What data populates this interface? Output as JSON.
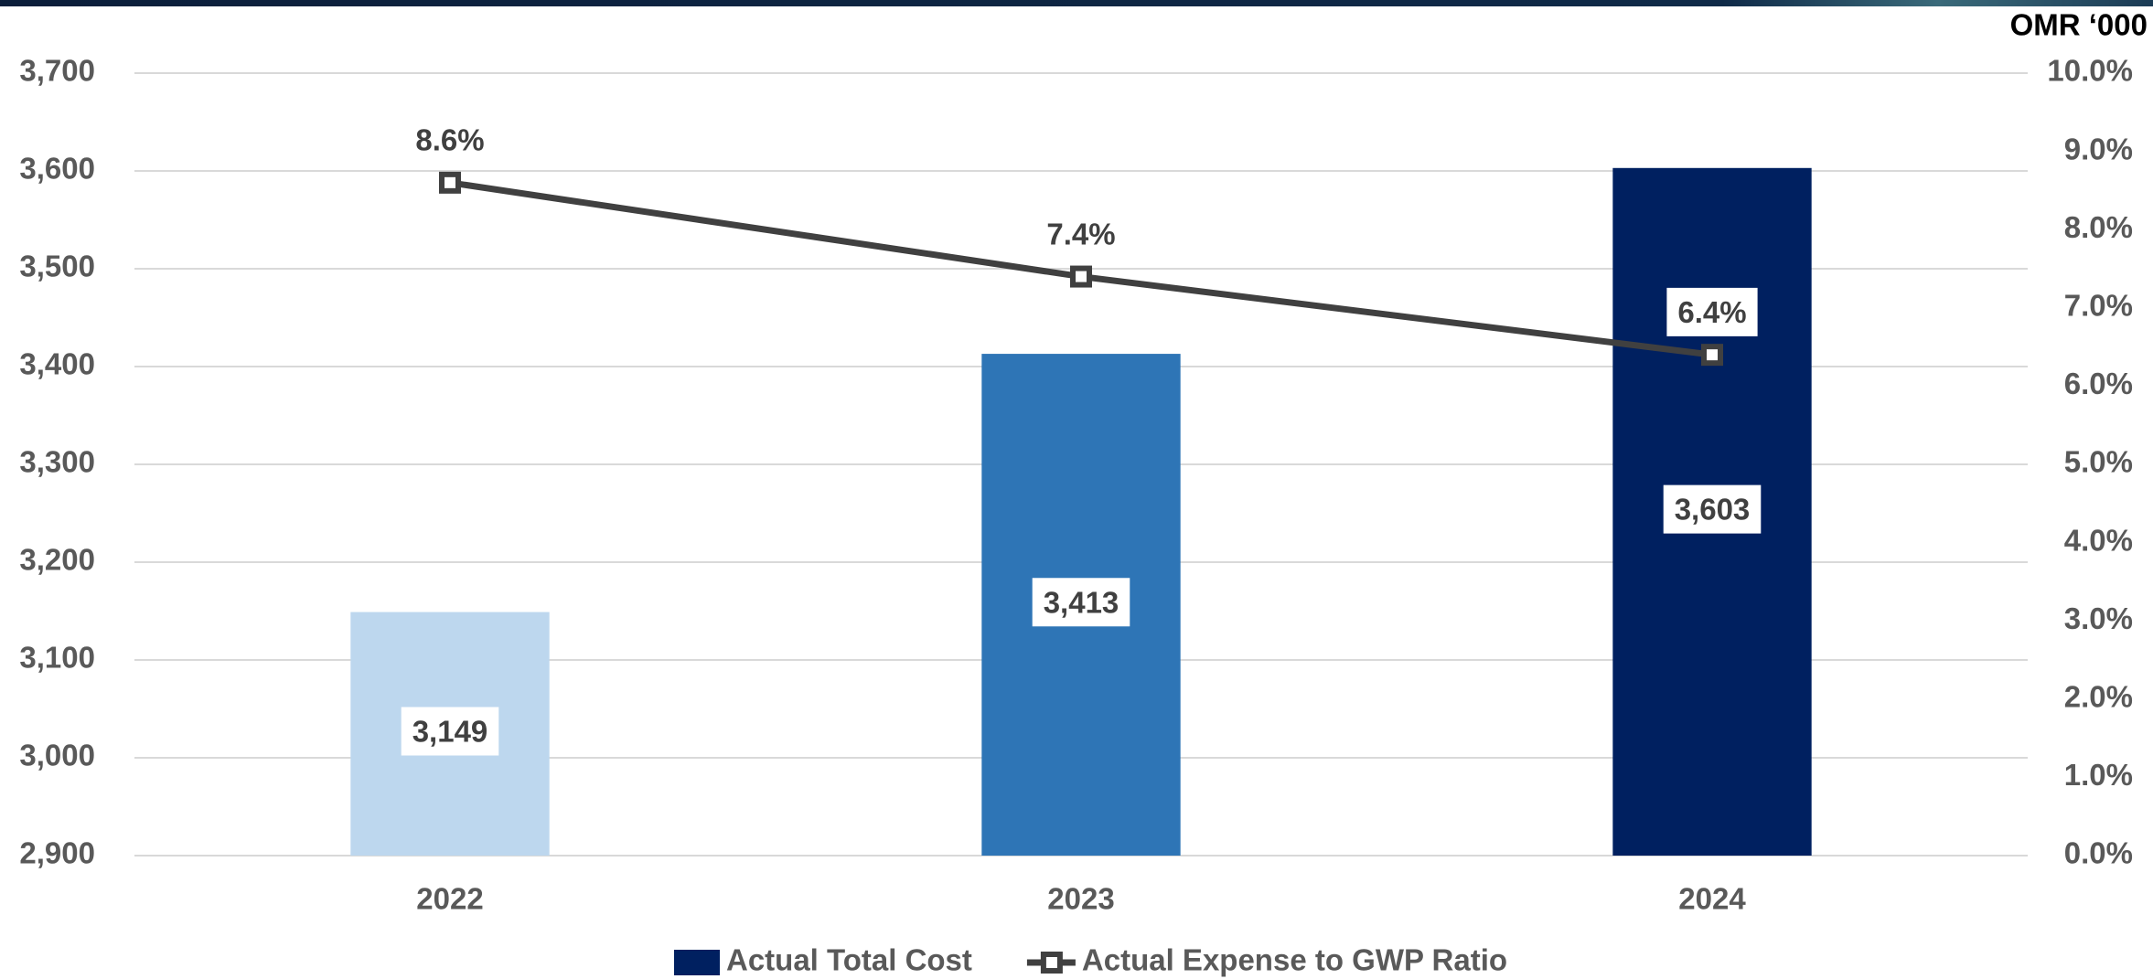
{
  "chart_data": {
    "type": "bar",
    "unit_label": "OMR ‘000",
    "categories": [
      "2022",
      "2023",
      "2024"
    ],
    "series": [
      {
        "name": "Actual Total Cost",
        "type": "bar",
        "color": "#002060",
        "colors": [
          "#bdd7ee",
          "#2e75b6",
          "#002060"
        ],
        "values": [
          3149,
          3413,
          3603
        ],
        "value_labels": [
          "3,149",
          "3,413",
          "3,603"
        ]
      },
      {
        "name": "Actual Expense to GWP Ratio",
        "type": "line",
        "axis": "y2",
        "color": "#404040",
        "values": [
          8.6,
          7.4,
          6.4
        ],
        "value_labels": [
          "8.6%",
          "7.4%",
          "6.4%"
        ]
      }
    ],
    "ylim": [
      2900,
      3700
    ],
    "yticks": [
      {
        "value": 2900,
        "label": "2,900"
      },
      {
        "value": 3000,
        "label": "3,000"
      },
      {
        "value": 3100,
        "label": "3,100"
      },
      {
        "value": 3200,
        "label": "3,200"
      },
      {
        "value": 3300,
        "label": "3,300"
      },
      {
        "value": 3400,
        "label": "3,400"
      },
      {
        "value": 3500,
        "label": "3,500"
      },
      {
        "value": 3600,
        "label": "3,600"
      },
      {
        "value": 3700,
        "label": "3,700"
      }
    ],
    "y2lim": [
      0,
      10
    ],
    "y2ticks": [
      {
        "value": 0,
        "label": "0.0%"
      },
      {
        "value": 1,
        "label": "1.0%"
      },
      {
        "value": 2,
        "label": "2.0%"
      },
      {
        "value": 3,
        "label": "3.0%"
      },
      {
        "value": 4,
        "label": "4.0%"
      },
      {
        "value": 5,
        "label": "5.0%"
      },
      {
        "value": 6,
        "label": "6.0%"
      },
      {
        "value": 7,
        "label": "7.0%"
      },
      {
        "value": 8,
        "label": "8.0%"
      },
      {
        "value": 9,
        "label": "9.0%"
      },
      {
        "value": 10,
        "label": "10.0%"
      }
    ],
    "grid": true,
    "legend": "bottom"
  }
}
